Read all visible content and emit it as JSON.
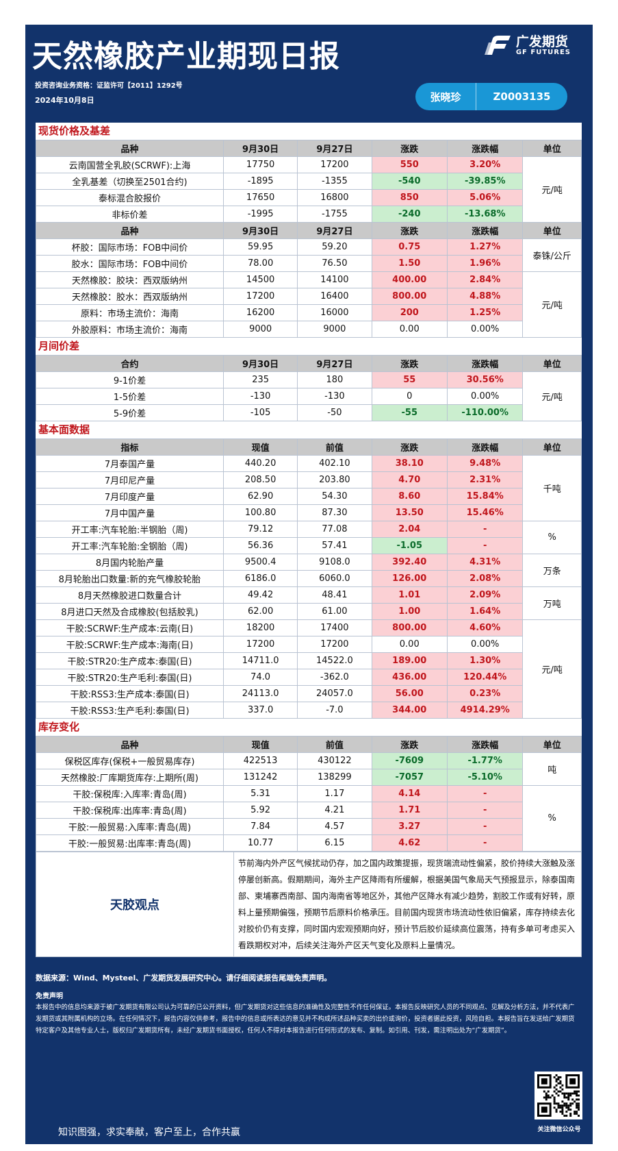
{
  "header": {
    "title": "天然橡胶产业期现日报",
    "logo_cn": "广发期货",
    "logo_en": "GF FUTURES",
    "qualification": "投资咨询业务资格：证监许可【2011】1292号",
    "date": "2024年10月8日",
    "author": "张晓珍",
    "author_code": "Z0003135"
  },
  "spot": {
    "section": "现货价格及基差",
    "headers1": [
      "品种",
      "9月30日",
      "9月27日",
      "涨跌",
      "涨跌幅",
      "单位"
    ],
    "rows1": [
      {
        "name": "云南国营全乳胶(SCRWF):上海",
        "cur": "17750",
        "prev": "17200",
        "chg": "550",
        "pct": "3.20%",
        "dir": "up"
      },
      {
        "name": "全乳基差（切换至2501合约)",
        "cur": "-1895",
        "prev": "-1355",
        "chg": "-540",
        "pct": "-39.85%",
        "dir": "dn"
      },
      {
        "name": "泰标混合胶报价",
        "cur": "17650",
        "prev": "16800",
        "chg": "850",
        "pct": "5.06%",
        "dir": "up"
      },
      {
        "name": "非标价差",
        "cur": "-1995",
        "prev": "-1755",
        "chg": "-240",
        "pct": "-13.68%",
        "dir": "dn"
      }
    ],
    "unit1": "元/吨",
    "headers2": [
      "品种",
      "9月30日",
      "9月27日",
      "涨跌",
      "涨跌幅",
      "单位"
    ],
    "rows2": [
      {
        "name": "杯胶：国际市场：FOB中间价",
        "cur": "59.95",
        "prev": "59.20",
        "chg": "0.75",
        "pct": "1.27%",
        "dir": "up"
      },
      {
        "name": "胶水：国际市场：FOB中间价",
        "cur": "78.00",
        "prev": "76.50",
        "chg": "1.50",
        "pct": "1.96%",
        "dir": "up"
      },
      {
        "name": "天然橡胶：胶块：西双版纳州",
        "cur": "14500",
        "prev": "14100",
        "chg": "400.00",
        "pct": "2.84%",
        "dir": "up"
      },
      {
        "name": "天然橡胶：胶水：西双版纳州",
        "cur": "17200",
        "prev": "16400",
        "chg": "800.00",
        "pct": "4.88%",
        "dir": "up"
      },
      {
        "name": "原料：市场主流价：海南",
        "cur": "16200",
        "prev": "16000",
        "chg": "200",
        "pct": "1.25%",
        "dir": "up"
      },
      {
        "name": "外胶原料：市场主流价：海南",
        "cur": "9000",
        "prev": "9000",
        "chg": "0.00",
        "pct": "0.00%",
        "dir": "nc"
      }
    ],
    "unit2a": "泰铢/公斤",
    "unit2b": "元/吨"
  },
  "spread": {
    "section": "月间价差",
    "headers": [
      "合约",
      "9月30日",
      "9月27日",
      "涨跌",
      "涨跌幅",
      "单位"
    ],
    "rows": [
      {
        "name": "9-1价差",
        "cur": "235",
        "prev": "180",
        "chg": "55",
        "pct": "30.56%",
        "dir": "up"
      },
      {
        "name": "1-5价差",
        "cur": "-130",
        "prev": "-130",
        "chg": "0",
        "pct": "0.00%",
        "dir": "nc"
      },
      {
        "name": "5-9价差",
        "cur": "-105",
        "prev": "-50",
        "chg": "-55",
        "pct": "-110.00%",
        "dir": "dn"
      }
    ],
    "unit": "元/吨"
  },
  "fund": {
    "section": "基本面数据",
    "headers": [
      "指标",
      "现值",
      "前值",
      "涨跌",
      "涨跌幅",
      "单位"
    ],
    "rows": [
      {
        "name": "7月泰国产量",
        "cur": "440.20",
        "prev": "402.10",
        "chg": "38.10",
        "pct": "9.48%",
        "dir": "up"
      },
      {
        "name": "7月印尼产量",
        "cur": "208.50",
        "prev": "203.80",
        "chg": "4.70",
        "pct": "2.31%",
        "dir": "up"
      },
      {
        "name": "7月印度产量",
        "cur": "62.90",
        "prev": "54.30",
        "chg": "8.60",
        "pct": "15.84%",
        "dir": "up"
      },
      {
        "name": "7月中国产量",
        "cur": "100.80",
        "prev": "87.30",
        "chg": "13.50",
        "pct": "15.46%",
        "dir": "up"
      },
      {
        "name": "开工率:汽车轮胎:半钢胎（周)",
        "cur": "79.12",
        "prev": "77.08",
        "chg": "2.04",
        "pct": "-",
        "dir": "up"
      },
      {
        "name": "开工率:汽车轮胎:全钢胎（周)",
        "cur": "56.36",
        "prev": "57.41",
        "chg": "-1.05",
        "pct": "-",
        "dir": "dn",
        "pct_dir": "up"
      },
      {
        "name": "8月国内轮胎产量",
        "cur": "9500.4",
        "prev": "9108.0",
        "chg": "392.40",
        "pct": "4.31%",
        "dir": "up"
      },
      {
        "name": "8月轮胎出口数量:新的充气橡胶轮胎",
        "cur": "6186.0",
        "prev": "6060.0",
        "chg": "126.00",
        "pct": "2.08%",
        "dir": "up"
      },
      {
        "name": "8月天然橡胶进口数量合计",
        "cur": "49.42",
        "prev": "48.41",
        "chg": "1.01",
        "pct": "2.09%",
        "dir": "up"
      },
      {
        "name": "8月进口天然及合成橡胶(包括胶乳)",
        "cur": "62.00",
        "prev": "61.00",
        "chg": "1.00",
        "pct": "1.64%",
        "dir": "up"
      },
      {
        "name": "干胶:SCRWF:生产成本:云南(日)",
        "cur": "18200",
        "prev": "17400",
        "chg": "800.00",
        "pct": "4.60%",
        "dir": "up"
      },
      {
        "name": "干胶:SCRWF:生产成本:海南(日)",
        "cur": "17200",
        "prev": "17200",
        "chg": "0.00",
        "pct": "0.00%",
        "dir": "nc"
      },
      {
        "name": "干胶:STR20:生产成本:泰国(日)",
        "cur": "14711.0",
        "prev": "14522.0",
        "chg": "189.00",
        "pct": "1.30%",
        "dir": "up"
      },
      {
        "name": "干胶:STR20:生产毛利:泰国(日)",
        "cur": "74.0",
        "prev": "-362.0",
        "chg": "436.00",
        "pct": "120.44%",
        "dir": "up"
      },
      {
        "name": "干胶:RSS3:生产成本:泰国(日)",
        "cur": "24113.0",
        "prev": "24057.0",
        "chg": "56.00",
        "pct": "0.23%",
        "dir": "up"
      },
      {
        "name": "干胶:RSS3:生产毛利:泰国(日)",
        "cur": "337.0",
        "prev": "-7.0",
        "chg": "344.00",
        "pct": "4914.29%",
        "dir": "up"
      }
    ],
    "units": [
      "千吨",
      "%",
      "万条",
      "万吨",
      "元/吨"
    ]
  },
  "stock": {
    "section": "库存变化",
    "headers": [
      "品种",
      "现值",
      "前值",
      "涨跌",
      "涨跌幅",
      "单位"
    ],
    "rows": [
      {
        "name": "保税区库存(保税+一般贸易库存)",
        "cur": "422513",
        "prev": "430122",
        "chg": "-7609",
        "pct": "-1.77%",
        "dir": "dn"
      },
      {
        "name": "天然橡胶:厂库期货库存:上期所(周)",
        "cur": "131242",
        "prev": "138299",
        "chg": "-7057",
        "pct": "-5.10%",
        "dir": "dn"
      },
      {
        "name": "干胶:保税库:入库率:青岛(周)",
        "cur": "5.31",
        "prev": "1.17",
        "chg": "4.14",
        "pct": "-",
        "dir": "up"
      },
      {
        "name": "干胶:保税库:出库率:青岛(周)",
        "cur": "5.92",
        "prev": "4.21",
        "chg": "1.71",
        "pct": "-",
        "dir": "up"
      },
      {
        "name": "干胶:一般贸易:入库率:青岛(周)",
        "cur": "7.84",
        "prev": "4.57",
        "chg": "3.27",
        "pct": "-",
        "dir": "up"
      },
      {
        "name": "干胶:一般贸易:出库率:青岛(周)",
        "cur": "10.77",
        "prev": "6.15",
        "chg": "4.62",
        "pct": "-",
        "dir": "up"
      }
    ],
    "units": [
      "吨",
      "%"
    ]
  },
  "view": {
    "label": "天胶观点",
    "text": "节前海内外产区气候扰动仍存，加之国内政策提振，现货端流动性偏紧，胶价持续大涨触及涨停屡创新高。假期期间，海外主产区降雨有所缓解，根据美国气象局天气预报显示，除泰国南部、柬埔寨西南部、国内海南省等地区外，其他产区降水有减少趋势，割胶工作或有好转，原料上量预期偏强，预期节后原料价格承压。目前国内现货市场流动性依旧偏紧，库存持续去化对胶价仍有支撑，同时国内宏观预期向好，预计节后胶价延续高位震荡，持有多单可考虑买入看跌期权对冲，后续关注海外产区天气变化及原料上量情况。"
  },
  "footer": {
    "source": "数据来源：Wind、Mysteel、广发期货发展研究中心。请仔细阅读报告尾端免责声明。",
    "disclaimer_title": "免责声明",
    "disclaimer": "本报告中的信息均来源于被广发期货有限公司认为可靠的已公开资料，但广发期货对这些信息的准确性及完整性不作任何保证。本报告反映研究人员的不同观点、见解及分析方法，并不代表广发期货或其附属机构的立场。在任何情况下，报告内容仅供参考，报告中的信息或所表达的意见并不构成所述品种买卖的出价或询价，投资者据此投资，风险自担。本报告旨在发送给广发期货特定客户及其他专业人士，版权归广发期货所有，未经广发期货书面授权，任何人不得对本报告进行任何形式的发布、复制。如引用、刊发，需注明出处为“广发期货”。",
    "motto": "知识图强，求实奉献，客户至上，合作共赢",
    "qr_caption": "关注微信公众号"
  }
}
